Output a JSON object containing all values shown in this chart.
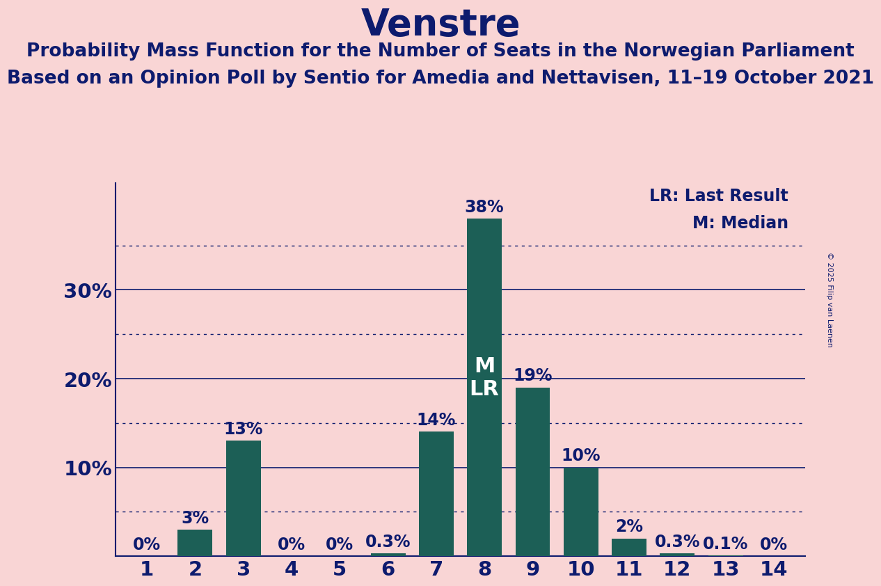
{
  "title": "Venstre",
  "subtitle_line1": "Probability Mass Function for the Number of Seats in the Norwegian Parliament",
  "subtitle_line2": "Based on an Opinion Poll by Sentio for Amedia and Nettavisen, 11–19 October 2021",
  "copyright": "© 2025 Filip van Laenen",
  "categories": [
    1,
    2,
    3,
    4,
    5,
    6,
    7,
    8,
    9,
    10,
    11,
    12,
    13,
    14
  ],
  "values": [
    0.0,
    3.0,
    13.0,
    0.0,
    0.0,
    0.3,
    14.0,
    38.0,
    19.0,
    10.0,
    2.0,
    0.3,
    0.1,
    0.0
  ],
  "bar_color": "#1c5f56",
  "background_color": "#f9d5d5",
  "text_color": "#0d1b6e",
  "title_fontsize": 38,
  "subtitle_fontsize": 19,
  "label_fontsize": 17,
  "tick_fontsize": 21,
  "ytick_labels": [
    "10%",
    "20%",
    "30%"
  ],
  "ytick_values": [
    10,
    20,
    30
  ],
  "grid_solid_values": [
    10,
    20,
    30
  ],
  "grid_dotted_values": [
    5,
    15,
    25,
    35
  ],
  "ylim": [
    0,
    42
  ],
  "median_seat": 8,
  "lr_seat": 8,
  "legend_lr": "LR: Last Result",
  "legend_m": "M: Median",
  "ml_fontsize": 22
}
